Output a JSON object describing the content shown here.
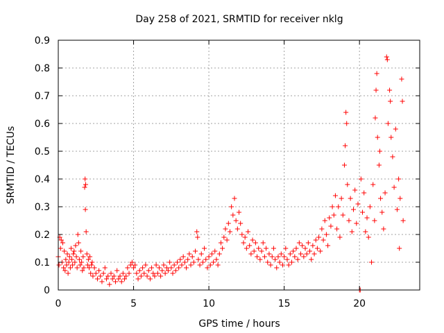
{
  "chart_data": {
    "type": "scatter",
    "title": "Day 258 of 2021, SRMTID for receiver nklg",
    "xlabel": "GPS time / hours",
    "ylabel": "SRMTID / TECUs",
    "xlim": [
      0,
      24
    ],
    "ylim": [
      0,
      0.9
    ],
    "x_ticks": [
      0,
      5,
      10,
      15,
      20
    ],
    "x_tick_labels": [
      "0",
      "5",
      "10",
      "15",
      "20"
    ],
    "y_ticks": [
      0,
      0.1,
      0.2,
      0.3,
      0.4,
      0.5,
      0.6,
      0.7,
      0.8,
      0.9
    ],
    "y_tick_labels": [
      "0",
      "0.1",
      "0.2",
      "0.3",
      "0.4",
      "0.5",
      "0.6",
      "0.7",
      "0.8",
      "0.9"
    ],
    "grid": true,
    "marker": "+",
    "color": "#ff0000",
    "series": [
      {
        "name": "SRMTID",
        "points": [
          [
            0.0,
            0.12
          ],
          [
            0.05,
            0.09
          ],
          [
            0.1,
            0.19
          ],
          [
            0.15,
            0.15
          ],
          [
            0.2,
            0.18
          ],
          [
            0.25,
            0.1
          ],
          [
            0.3,
            0.17
          ],
          [
            0.35,
            0.08
          ],
          [
            0.4,
            0.14
          ],
          [
            0.45,
            0.07
          ],
          [
            0.5,
            0.11
          ],
          [
            0.55,
            0.09
          ],
          [
            0.6,
            0.13
          ],
          [
            0.65,
            0.06
          ],
          [
            0.7,
            0.1
          ],
          [
            0.75,
            0.12
          ],
          [
            0.8,
            0.08
          ],
          [
            0.85,
            0.15
          ],
          [
            0.9,
            0.11
          ],
          [
            0.95,
            0.09
          ],
          [
            1.0,
            0.13
          ],
          [
            1.05,
            0.14
          ],
          [
            1.1,
            0.1
          ],
          [
            1.15,
            0.16
          ],
          [
            1.2,
            0.12
          ],
          [
            1.25,
            0.08
          ],
          [
            1.3,
            0.2
          ],
          [
            1.35,
            0.17
          ],
          [
            1.4,
            0.11
          ],
          [
            1.45,
            0.09
          ],
          [
            1.5,
            0.14
          ],
          [
            1.55,
            0.1
          ],
          [
            1.6,
            0.07
          ],
          [
            1.65,
            0.12
          ],
          [
            1.7,
            0.08
          ],
          [
            1.75,
            0.37
          ],
          [
            1.78,
            0.4
          ],
          [
            1.8,
            0.29
          ],
          [
            1.82,
            0.38
          ],
          [
            1.85,
            0.21
          ],
          [
            1.9,
            0.13
          ],
          [
            1.95,
            0.09
          ],
          [
            2.0,
            0.11
          ],
          [
            2.05,
            0.08
          ],
          [
            2.1,
            0.12
          ],
          [
            2.15,
            0.06
          ],
          [
            2.2,
            0.09
          ],
          [
            2.25,
            0.1
          ],
          [
            2.3,
            0.05
          ],
          [
            2.4,
            0.08
          ],
          [
            2.5,
            0.06
          ],
          [
            2.6,
            0.04
          ],
          [
            2.7,
            0.07
          ],
          [
            2.8,
            0.05
          ],
          [
            2.9,
            0.03
          ],
          [
            3.0,
            0.06
          ],
          [
            3.1,
            0.08
          ],
          [
            3.2,
            0.04
          ],
          [
            3.3,
            0.05
          ],
          [
            3.4,
            0.02
          ],
          [
            3.5,
            0.06
          ],
          [
            3.6,
            0.04
          ],
          [
            3.7,
            0.05
          ],
          [
            3.8,
            0.03
          ],
          [
            3.9,
            0.07
          ],
          [
            4.0,
            0.04
          ],
          [
            4.1,
            0.05
          ],
          [
            4.2,
            0.03
          ],
          [
            4.3,
            0.06
          ],
          [
            4.4,
            0.04
          ],
          [
            4.5,
            0.05
          ],
          [
            4.6,
            0.08
          ],
          [
            4.7,
            0.06
          ],
          [
            4.8,
            0.09
          ],
          [
            4.9,
            0.1
          ],
          [
            5.0,
            0.08
          ],
          [
            5.1,
            0.09
          ],
          [
            5.2,
            0.06
          ],
          [
            5.3,
            0.04
          ],
          [
            5.4,
            0.07
          ],
          [
            5.5,
            0.05
          ],
          [
            5.6,
            0.08
          ],
          [
            5.7,
            0.06
          ],
          [
            5.8,
            0.09
          ],
          [
            5.9,
            0.05
          ],
          [
            6.0,
            0.07
          ],
          [
            6.1,
            0.04
          ],
          [
            6.2,
            0.08
          ],
          [
            6.3,
            0.06
          ],
          [
            6.4,
            0.05
          ],
          [
            6.5,
            0.09
          ],
          [
            6.6,
            0.06
          ],
          [
            6.7,
            0.08
          ],
          [
            6.8,
            0.05
          ],
          [
            6.9,
            0.07
          ],
          [
            7.0,
            0.09
          ],
          [
            7.1,
            0.06
          ],
          [
            7.2,
            0.08
          ],
          [
            7.3,
            0.07
          ],
          [
            7.4,
            0.1
          ],
          [
            7.5,
            0.08
          ],
          [
            7.6,
            0.06
          ],
          [
            7.7,
            0.09
          ],
          [
            7.8,
            0.07
          ],
          [
            7.9,
            0.1
          ],
          [
            8.0,
            0.08
          ],
          [
            8.1,
            0.11
          ],
          [
            8.2,
            0.09
          ],
          [
            8.3,
            0.12
          ],
          [
            8.4,
            0.1
          ],
          [
            8.5,
            0.08
          ],
          [
            8.6,
            0.11
          ],
          [
            8.7,
            0.13
          ],
          [
            8.8,
            0.09
          ],
          [
            8.9,
            0.12
          ],
          [
            9.0,
            0.1
          ],
          [
            9.1,
            0.14
          ],
          [
            9.2,
            0.21
          ],
          [
            9.25,
            0.19
          ],
          [
            9.3,
            0.11
          ],
          [
            9.4,
            0.09
          ],
          [
            9.5,
            0.13
          ],
          [
            9.6,
            0.1
          ],
          [
            9.7,
            0.15
          ],
          [
            9.8,
            0.11
          ],
          [
            9.9,
            0.08
          ],
          [
            10.0,
            0.12
          ],
          [
            10.1,
            0.09
          ],
          [
            10.2,
            0.13
          ],
          [
            10.3,
            0.1
          ],
          [
            10.4,
            0.14
          ],
          [
            10.5,
            0.11
          ],
          [
            10.6,
            0.09
          ],
          [
            10.7,
            0.13
          ],
          [
            10.8,
            0.17
          ],
          [
            10.9,
            0.15
          ],
          [
            11.0,
            0.19
          ],
          [
            11.1,
            0.22
          ],
          [
            11.2,
            0.18
          ],
          [
            11.3,
            0.24
          ],
          [
            11.4,
            0.21
          ],
          [
            11.5,
            0.3
          ],
          [
            11.6,
            0.27
          ],
          [
            11.7,
            0.33
          ],
          [
            11.8,
            0.25
          ],
          [
            11.9,
            0.22
          ],
          [
            12.0,
            0.28
          ],
          [
            12.1,
            0.24
          ],
          [
            12.2,
            0.2
          ],
          [
            12.3,
            0.17
          ],
          [
            12.4,
            0.19
          ],
          [
            12.5,
            0.15
          ],
          [
            12.6,
            0.21
          ],
          [
            12.7,
            0.16
          ],
          [
            12.8,
            0.13
          ],
          [
            12.9,
            0.18
          ],
          [
            13.0,
            0.14
          ],
          [
            13.1,
            0.17
          ],
          [
            13.2,
            0.12
          ],
          [
            13.3,
            0.15
          ],
          [
            13.4,
            0.11
          ],
          [
            13.5,
            0.14
          ],
          [
            13.6,
            0.17
          ],
          [
            13.7,
            0.12
          ],
          [
            13.8,
            0.15
          ],
          [
            13.9,
            0.1
          ],
          [
            14.0,
            0.13
          ],
          [
            14.1,
            0.09
          ],
          [
            14.2,
            0.12
          ],
          [
            14.3,
            0.15
          ],
          [
            14.4,
            0.11
          ],
          [
            14.5,
            0.08
          ],
          [
            14.6,
            0.12
          ],
          [
            14.7,
            0.1
          ],
          [
            14.8,
            0.13
          ],
          [
            14.9,
            0.09
          ],
          [
            15.0,
            0.12
          ],
          [
            15.1,
            0.15
          ],
          [
            15.2,
            0.11
          ],
          [
            15.3,
            0.09
          ],
          [
            15.4,
            0.13
          ],
          [
            15.5,
            0.1
          ],
          [
            15.6,
            0.14
          ],
          [
            15.7,
            0.12
          ],
          [
            15.8,
            0.15
          ],
          [
            15.9,
            0.11
          ],
          [
            16.0,
            0.17
          ],
          [
            16.1,
            0.13
          ],
          [
            16.2,
            0.16
          ],
          [
            16.3,
            0.12
          ],
          [
            16.4,
            0.15
          ],
          [
            16.5,
            0.13
          ],
          [
            16.6,
            0.17
          ],
          [
            16.7,
            0.14
          ],
          [
            16.8,
            0.11
          ],
          [
            16.9,
            0.16
          ],
          [
            17.0,
            0.13
          ],
          [
            17.1,
            0.18
          ],
          [
            17.2,
            0.15
          ],
          [
            17.3,
            0.19
          ],
          [
            17.4,
            0.14
          ],
          [
            17.5,
            0.22
          ],
          [
            17.6,
            0.18
          ],
          [
            17.7,
            0.25
          ],
          [
            17.8,
            0.2
          ],
          [
            17.9,
            0.16
          ],
          [
            18.0,
            0.26
          ],
          [
            18.1,
            0.23
          ],
          [
            18.2,
            0.3
          ],
          [
            18.3,
            0.27
          ],
          [
            18.4,
            0.34
          ],
          [
            18.5,
            0.22
          ],
          [
            18.6,
            0.3
          ],
          [
            18.7,
            0.19
          ],
          [
            18.8,
            0.33
          ],
          [
            18.9,
            0.27
          ],
          [
            19.0,
            0.45
          ],
          [
            19.05,
            0.52
          ],
          [
            19.1,
            0.64
          ],
          [
            19.15,
            0.6
          ],
          [
            19.2,
            0.38
          ],
          [
            19.3,
            0.25
          ],
          [
            19.4,
            0.33
          ],
          [
            19.5,
            0.21
          ],
          [
            19.6,
            0.29
          ],
          [
            19.7,
            0.36
          ],
          [
            19.8,
            0.24
          ],
          [
            19.9,
            0.31
          ],
          [
            20.0,
            0.0
          ],
          [
            20.05,
            0.0
          ],
          [
            20.1,
            0.4
          ],
          [
            20.2,
            0.28
          ],
          [
            20.3,
            0.35
          ],
          [
            20.4,
            0.21
          ],
          [
            20.5,
            0.26
          ],
          [
            20.6,
            0.19
          ],
          [
            20.7,
            0.3
          ],
          [
            20.8,
            0.1
          ],
          [
            20.9,
            0.38
          ],
          [
            21.0,
            0.25
          ],
          [
            21.05,
            0.62
          ],
          [
            21.1,
            0.72
          ],
          [
            21.15,
            0.78
          ],
          [
            21.2,
            0.55
          ],
          [
            21.3,
            0.45
          ],
          [
            21.35,
            0.5
          ],
          [
            21.4,
            0.33
          ],
          [
            21.5,
            0.28
          ],
          [
            21.6,
            0.22
          ],
          [
            21.7,
            0.35
          ],
          [
            21.8,
            0.84
          ],
          [
            21.85,
            0.83
          ],
          [
            21.9,
            0.6
          ],
          [
            22.0,
            0.72
          ],
          [
            22.05,
            0.68
          ],
          [
            22.1,
            0.55
          ],
          [
            22.2,
            0.48
          ],
          [
            22.3,
            0.37
          ],
          [
            22.4,
            0.58
          ],
          [
            22.5,
            0.29
          ],
          [
            22.6,
            0.4
          ],
          [
            22.65,
            0.15
          ],
          [
            22.7,
            0.33
          ],
          [
            22.8,
            0.76
          ],
          [
            22.85,
            0.68
          ],
          [
            22.9,
            0.25
          ]
        ]
      }
    ]
  }
}
